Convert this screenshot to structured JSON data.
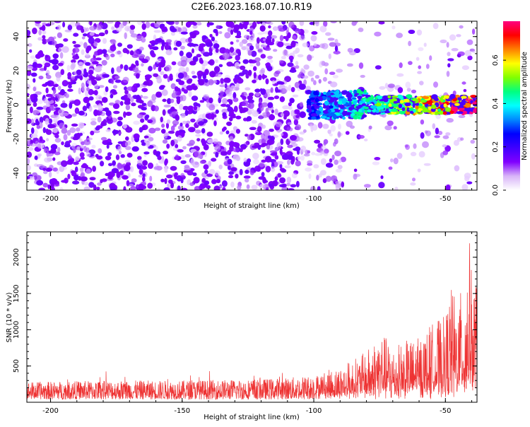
{
  "title": "C2E6.2023.168.07.10.R19",
  "chart_data": [
    {
      "type": "heatmap",
      "xlabel": "Height of straight line (km)",
      "ylabel": "Frequency (Hz)",
      "xlim": [
        -209,
        -38
      ],
      "ylim": [
        -50,
        49
      ],
      "xticks": [
        "-200",
        "-150",
        "-100",
        "-50"
      ],
      "yticks": [
        "-40",
        "-20",
        "0",
        "20",
        "40"
      ],
      "colorbar": {
        "label": "Normalized spectral amplitude",
        "range": [
          0,
          0.78
        ],
        "ticks": [
          "0.0",
          "0.2",
          "0.4",
          "0.6"
        ],
        "colors": [
          "#ffffff",
          "#d8b4f8",
          "#8000ff",
          "#3f00ff",
          "#0000ff",
          "#0088ff",
          "#00ffff",
          "#00ff80",
          "#80ff00",
          "#ffff00",
          "#ff8000",
          "#ff0000",
          "#ff0080"
        ]
      },
      "description_values": {
        "noise_region_x": [
          -209,
          -105
        ],
        "signal_band_center_hz": 0,
        "signal_band_halfwidth_hz": [
          3,
          8
        ],
        "signal_onset_km": -100,
        "peak_amplitude_x_km": [
          -60,
          -40
        ]
      }
    },
    {
      "type": "line",
      "xlabel": "Height of straight line (km)",
      "ylabel": "SNR (10 * v/v)",
      "xlim": [
        -209,
        -38
      ],
      "ylim": [
        0,
        2350
      ],
      "xticks": [
        "-200",
        "-150",
        "-100",
        "-50"
      ],
      "yticks": [
        "500",
        "1000",
        "1500",
        "2000"
      ],
      "color": "#ee3333",
      "baseline": {
        "x": [
          -209,
          -110
        ],
        "min": 40,
        "max": 300
      },
      "envelope": [
        [
          -209,
          280
        ],
        [
          -180,
          300
        ],
        [
          -150,
          300
        ],
        [
          -120,
          320
        ],
        [
          -110,
          340
        ],
        [
          -100,
          380
        ],
        [
          -90,
          500
        ],
        [
          -80,
          700
        ],
        [
          -75,
          1000
        ],
        [
          -70,
          800
        ],
        [
          -60,
          900
        ],
        [
          -55,
          1100
        ],
        [
          -50,
          1200
        ],
        [
          -48,
          1600
        ],
        [
          -45,
          1400
        ],
        [
          -42,
          1900
        ],
        [
          -41,
          2350
        ],
        [
          -40,
          1800
        ],
        [
          -38,
          1700
        ]
      ]
    }
  ]
}
